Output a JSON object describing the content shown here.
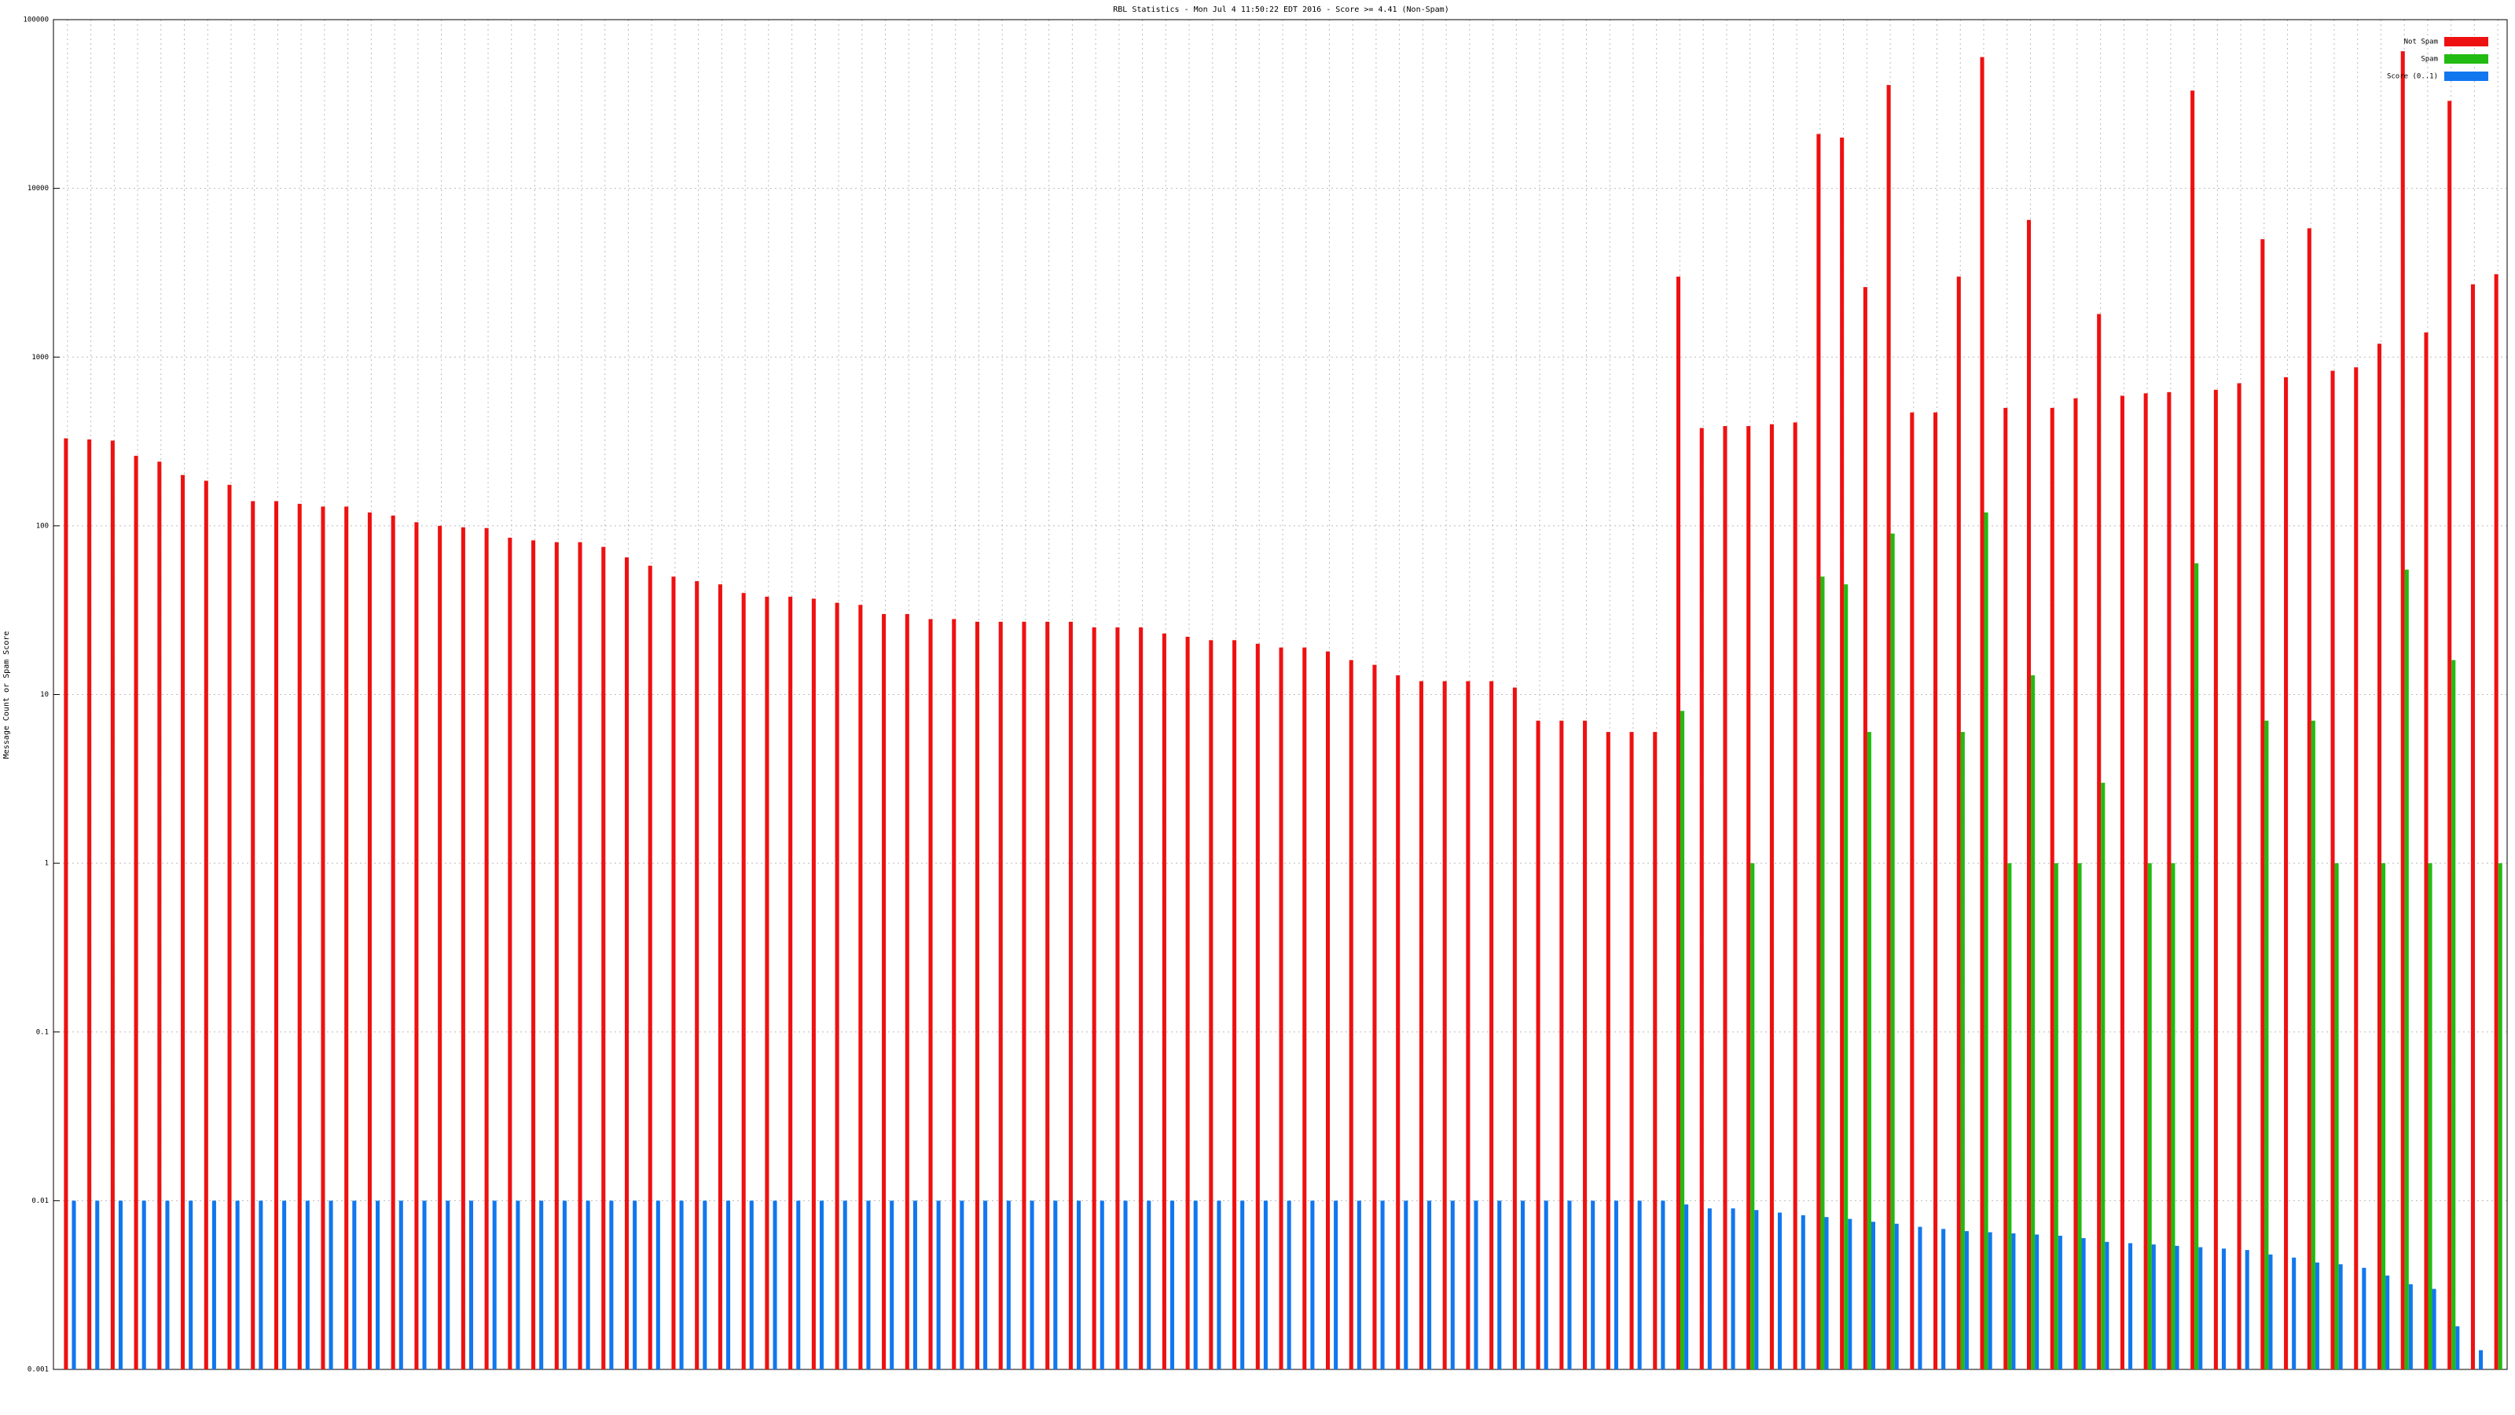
{
  "chart_data": {
    "type": "bar",
    "title": "RBL Statistics - Mon Jul  4 11:50:22 EDT 2016 - Score >= 4.41 (Non-Spam)",
    "y_label": "Message Count or Spam Score",
    "log_y": true,
    "grid": true,
    "legend": "top-right",
    "ylim": [
      0.001,
      100000
    ],
    "yticks": [
      0.001,
      0.01,
      0.1,
      1,
      10,
      100,
      1000,
      10000,
      100000
    ],
    "categories": [
      null,
      null,
      null,
      null,
      null,
      null,
      null,
      null,
      null,
      null,
      null,
      null,
      null,
      null,
      null,
      null,
      null,
      null,
      null,
      null,
      null,
      null,
      null,
      null,
      null,
      null,
      null,
      null,
      null,
      null,
      null,
      null,
      null,
      null,
      null,
      null,
      null,
      null,
      null,
      null,
      null,
      null,
      null,
      null,
      null,
      null,
      null,
      null,
      null,
      null,
      null,
      null,
      null,
      null,
      null,
      null,
      null,
      null,
      null,
      null,
      null,
      null,
      null,
      null,
      null,
      null,
      null,
      null,
      null,
      null,
      null,
      null,
      null,
      null,
      null,
      null,
      null,
      null,
      null,
      null,
      null,
      null,
      null,
      null,
      null,
      null,
      null,
      null,
      null,
      null,
      null,
      null,
      null,
      null,
      null,
      null,
      null,
      null,
      null,
      null,
      null,
      null,
      null,
      null,
      null
    ],
    "series": [
      {
        "name": "Not Spam",
        "color": "#ee1111",
        "values": [
          330,
          325,
          320,
          260,
          240,
          200,
          185,
          175,
          140,
          140,
          135,
          130,
          130,
          120,
          115,
          105,
          100,
          98,
          97,
          85,
          82,
          80,
          80,
          75,
          65,
          58,
          50,
          47,
          45,
          40,
          38,
          38,
          37,
          35,
          34,
          30,
          30,
          28,
          28,
          27,
          27,
          27,
          27,
          27,
          25,
          25,
          25,
          23,
          22,
          21,
          21,
          20,
          19,
          19,
          18,
          16,
          15,
          13,
          12,
          12,
          12,
          12,
          11,
          7,
          7,
          7,
          6,
          6,
          6,
          3000,
          380,
          390,
          390,
          400,
          410,
          21000,
          20000,
          2600,
          41000,
          470,
          470,
          3000,
          60000,
          500,
          6500,
          500,
          570,
          1800,
          590,
          610,
          620,
          38000,
          640,
          700,
          5000,
          760,
          5800,
          830,
          870,
          1200,
          65000,
          1400,
          33000,
          2700,
          3100
        ]
      },
      {
        "name": "Spam",
        "color": "#22bb11",
        "values": [
          null,
          null,
          null,
          null,
          null,
          null,
          null,
          null,
          null,
          null,
          null,
          null,
          null,
          null,
          null,
          null,
          null,
          null,
          null,
          null,
          null,
          null,
          null,
          null,
          null,
          null,
          null,
          null,
          null,
          null,
          null,
          null,
          null,
          null,
          null,
          null,
          null,
          null,
          null,
          null,
          null,
          null,
          null,
          null,
          null,
          null,
          null,
          null,
          null,
          null,
          null,
          null,
          null,
          null,
          null,
          null,
          null,
          null,
          null,
          null,
          null,
          null,
          null,
          null,
          null,
          null,
          null,
          null,
          null,
          8,
          null,
          null,
          1,
          null,
          null,
          50,
          45,
          6,
          90,
          null,
          null,
          6,
          120,
          1,
          13,
          1,
          1,
          3,
          null,
          1,
          1,
          60,
          null,
          null,
          7,
          null,
          7,
          1,
          null,
          1,
          55,
          1,
          16,
          null,
          1
        ]
      },
      {
        "name": "Score (0..1)",
        "color": "#1177ee",
        "values": [
          0.01,
          0.01,
          0.01,
          0.01,
          0.01,
          0.01,
          0.01,
          0.01,
          0.01,
          0.01,
          0.01,
          0.01,
          0.01,
          0.01,
          0.01,
          0.01,
          0.01,
          0.01,
          0.01,
          0.01,
          0.01,
          0.01,
          0.01,
          0.01,
          0.01,
          0.01,
          0.01,
          0.01,
          0.01,
          0.01,
          0.01,
          0.01,
          0.01,
          0.01,
          0.01,
          0.01,
          0.01,
          0.01,
          0.01,
          0.01,
          0.01,
          0.01,
          0.01,
          0.01,
          0.01,
          0.01,
          0.01,
          0.01,
          0.01,
          0.01,
          0.01,
          0.01,
          0.01,
          0.01,
          0.01,
          0.01,
          0.01,
          0.01,
          0.01,
          0.01,
          0.01,
          0.01,
          0.01,
          0.01,
          0.01,
          0.01,
          0.01,
          0.01,
          0.01,
          0.0095,
          0.009,
          0.009,
          0.0088,
          0.0085,
          0.0082,
          0.008,
          0.0078,
          0.0075,
          0.0073,
          0.007,
          0.0068,
          0.0066,
          0.0065,
          0.0064,
          0.0063,
          0.0062,
          0.006,
          0.0057,
          0.0056,
          0.0055,
          0.0054,
          0.0053,
          0.0052,
          0.0051,
          0.0048,
          0.0046,
          0.0043,
          0.0042,
          0.004,
          0.0036,
          0.0032,
          0.003,
          0.0018,
          0.0013,
          0.001
        ]
      }
    ]
  }
}
